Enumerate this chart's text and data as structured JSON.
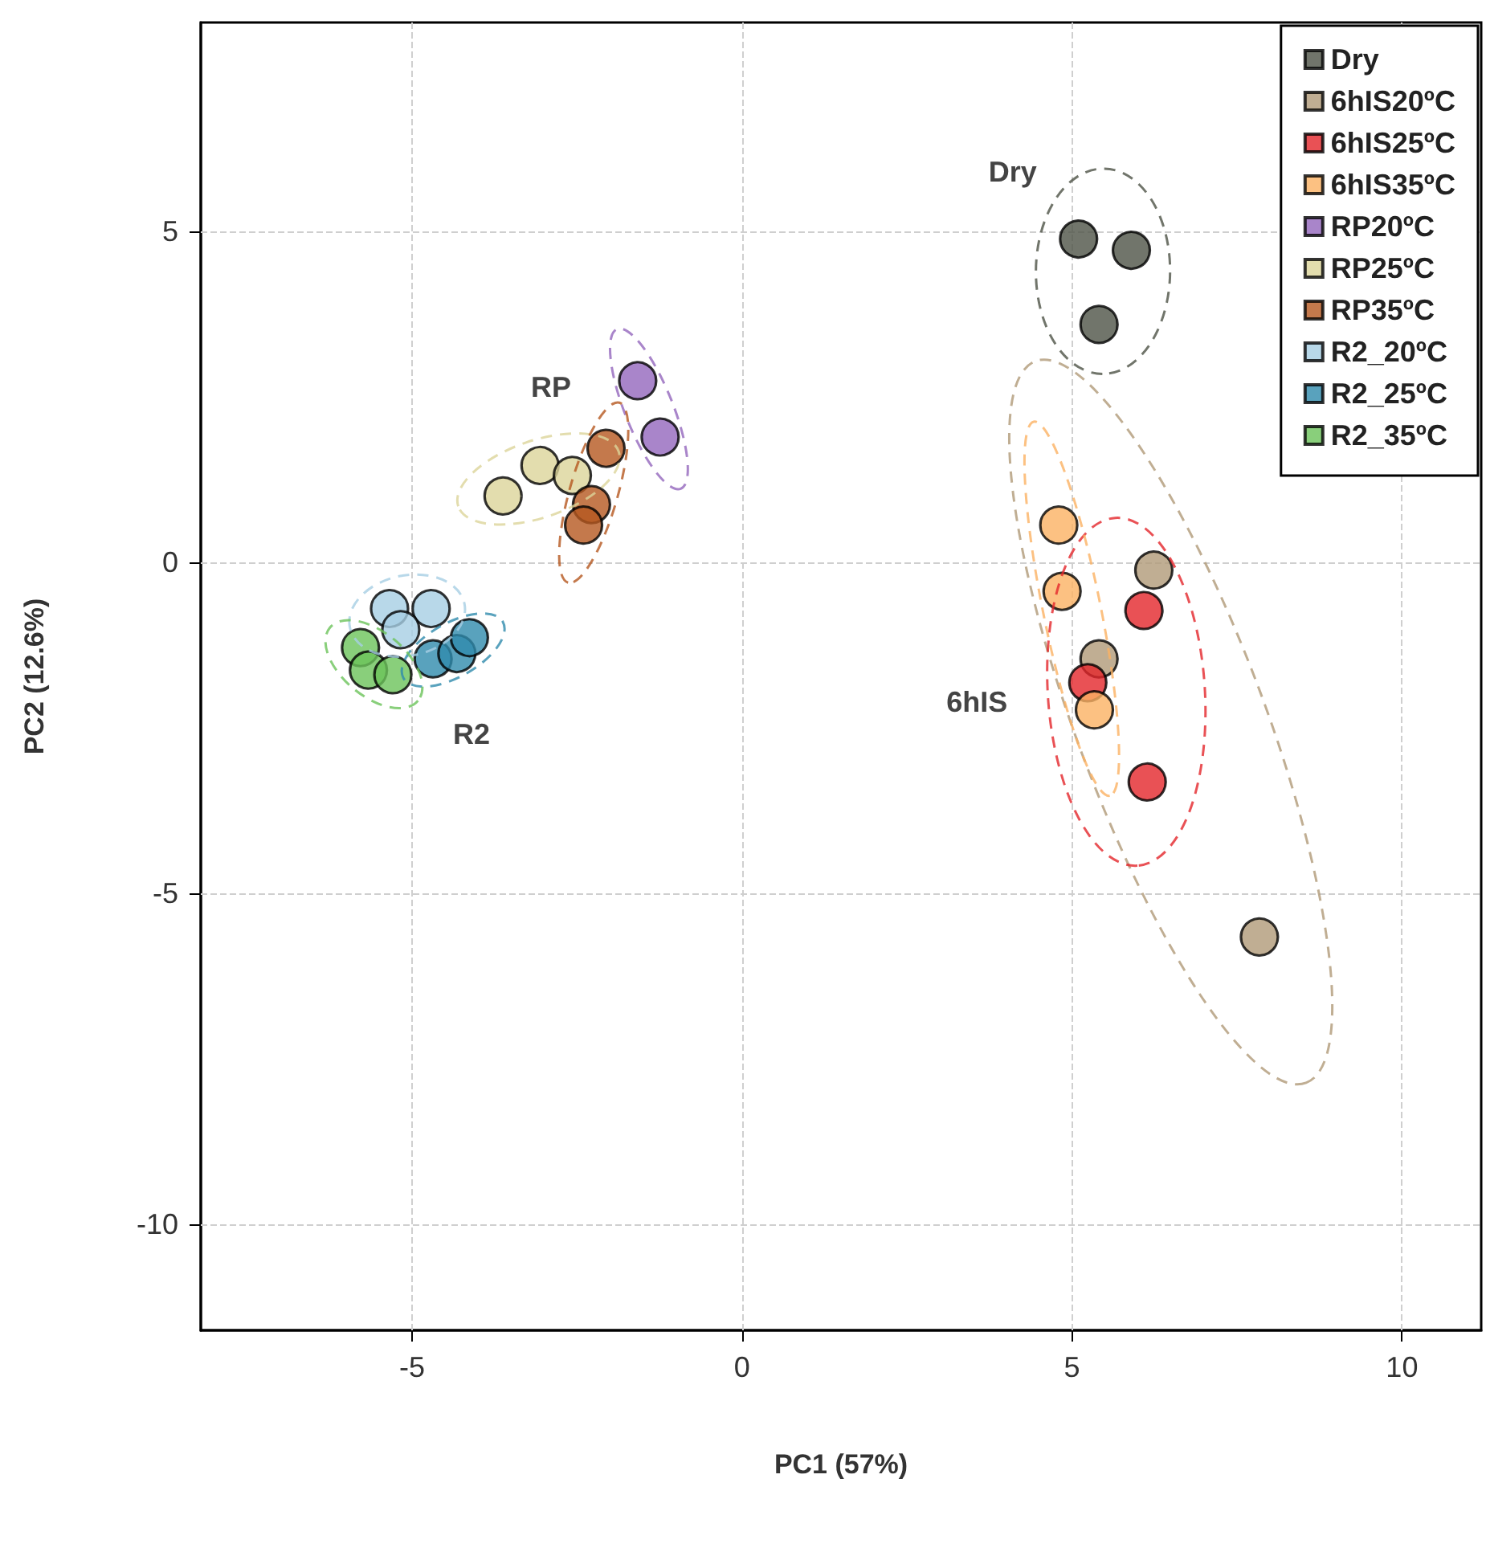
{
  "chart_data": {
    "type": "scatter",
    "xlabel": "PC1 (57%)",
    "ylabel": "PC2 (12.6%)",
    "xlim": [
      -8.2,
      11.2
    ],
    "ylim": [
      -11.6,
      8.15
    ],
    "xticks": [
      -5,
      0,
      5,
      10
    ],
    "yticks": [
      -10,
      -5,
      0,
      5
    ],
    "grid": true,
    "legend": "top right",
    "marker": "circle",
    "annotations": [
      "Dry",
      "RP",
      "6hIS",
      "R2"
    ],
    "series": [
      {
        "name": "Dry",
        "color": "#4d5246",
        "x": [
          5.1,
          5.9,
          5.41
        ],
        "values": [
          4.88,
          4.71,
          3.59
        ]
      },
      {
        "name": "6hIS20ºC",
        "color": "#b09a78",
        "x": [
          6.24,
          5.41,
          7.84
        ],
        "values": [
          -0.12,
          -1.46,
          -5.66
        ]
      },
      {
        "name": "6hIS25ºC",
        "color": "#e3262a",
        "x": [
          6.09,
          5.24,
          6.14
        ],
        "values": [
          -0.73,
          -1.82,
          -3.32
        ]
      },
      {
        "name": "6hIS35ºC",
        "color": "#fbb263",
        "x": [
          4.8,
          4.85,
          5.34
        ],
        "values": [
          0.56,
          -0.44,
          -2.23
        ]
      },
      {
        "name": "RP20ºC",
        "color": "#9467bd",
        "x": [
          -1.58,
          -1.24
        ],
        "values": [
          2.74,
          1.89
        ]
      },
      {
        "name": "RP25ºC",
        "color": "#dcd49a",
        "x": [
          -3.62,
          -3.06,
          -2.57
        ],
        "values": [
          1.0,
          1.46,
          1.31
        ]
      },
      {
        "name": "RP35ºC",
        "color": "#b5581f",
        "x": [
          -2.06,
          -2.28,
          -2.4
        ],
        "values": [
          1.72,
          0.87,
          0.56
        ]
      },
      {
        "name": "R2_20ºC",
        "color": "#a6cee3",
        "x": [
          -5.34,
          -4.71,
          -5.17
        ],
        "values": [
          -0.7,
          -0.7,
          -1.02
        ]
      },
      {
        "name": "R2_25ºC",
        "color": "#2f8bad",
        "x": [
          -4.68,
          -4.32,
          -4.13
        ],
        "values": [
          -1.46,
          -1.38,
          -1.14
        ]
      },
      {
        "name": "R2_35ºC",
        "color": "#6cc35a",
        "x": [
          -5.78,
          -5.66,
          -5.29
        ],
        "values": [
          -1.29,
          -1.63,
          -1.7
        ]
      }
    ]
  }
}
